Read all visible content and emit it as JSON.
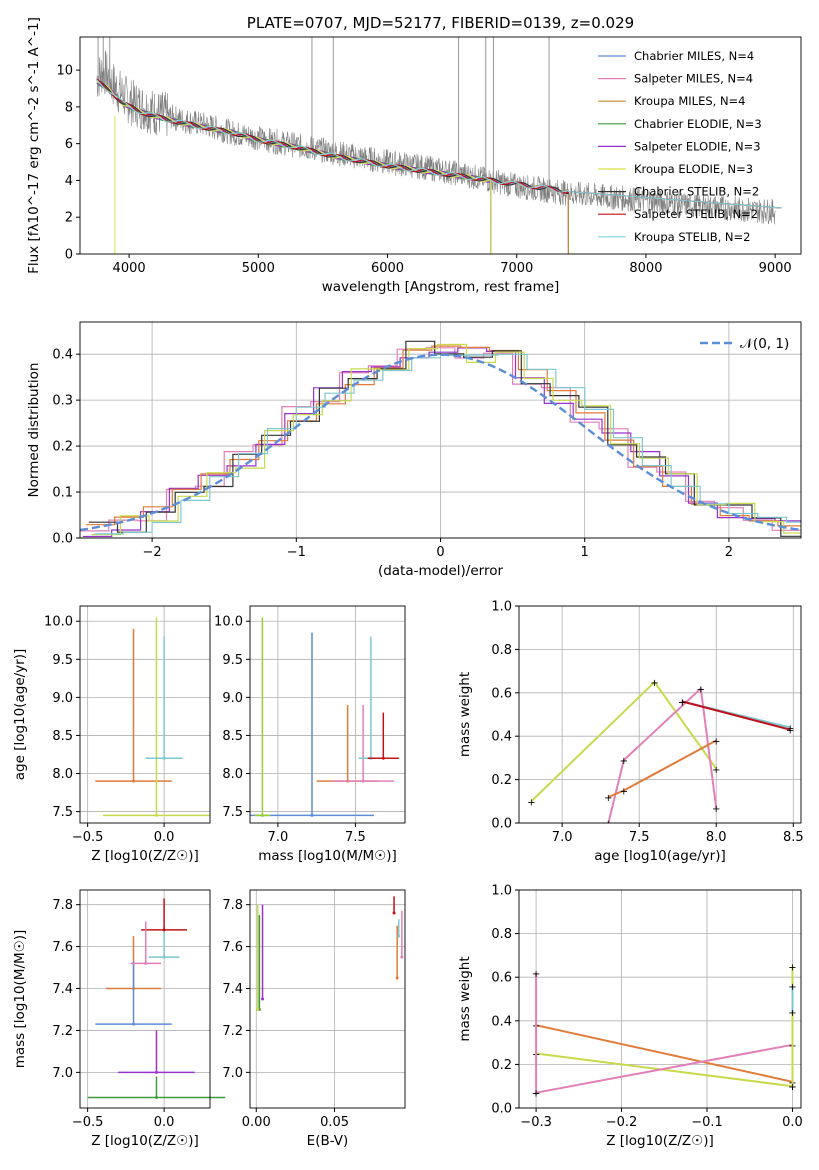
{
  "chart_data": [
    {
      "type": "line",
      "title": "PLATE=0707, MJD=52177, FIBERID=0139, z=0.029",
      "xlabel": "wavelength [Angstrom, rest frame]",
      "ylabel": "Flux [fλ10^-17 erg cm^-2 s^-1 A^-1]",
      "xlim": [
        3620,
        9200
      ],
      "ylim": [
        0,
        11.8
      ],
      "xticks": [
        "4000",
        "5000",
        "6000",
        "7000",
        "8000",
        "9000"
      ],
      "yticks": [
        "0",
        "2",
        "4",
        "6",
        "8",
        "10"
      ],
      "legend_position": "upper-right",
      "observed_spectrum": {
        "color": "#808080",
        "x": [
          3750,
          3800,
          3900,
          4000,
          4100,
          4200,
          4400,
          4600,
          4800,
          5000,
          5300,
          5600,
          6000,
          6300,
          6600,
          6800,
          7000,
          7200,
          7400,
          7700,
          8000,
          8400,
          8800,
          9000
        ],
        "y": [
          9.5,
          10.0,
          9.0,
          8.3,
          8.0,
          7.7,
          7.3,
          7.0,
          6.6,
          6.3,
          5.9,
          5.5,
          5.0,
          4.7,
          4.3,
          4.0,
          3.7,
          3.5,
          3.3,
          3.1,
          2.9,
          2.6,
          2.4,
          2.3
        ]
      },
      "series": [
        {
          "name": "Chabrier MILES, N_SSP=4",
          "color": "#5b8ed8"
        },
        {
          "name": "Salpeter MILES, N_SSP=4",
          "color": "#e37fb8"
        },
        {
          "name": "Kroupa MILES, N_SSP=4",
          "color": "#c18a2c"
        },
        {
          "name": "Chabrier ELODIE, N_SSP=3",
          "color": "#3f9b3f"
        },
        {
          "name": "Salpeter ELODIE, N_SSP=3",
          "color": "#9932cc"
        },
        {
          "name": "Kroupa ELODIE, N_SSP=3",
          "color": "#d9e14a"
        },
        {
          "name": "Chabrier STELIB, N_SSP=2",
          "color": "#333333"
        },
        {
          "name": "Salpeter STELIB, N_SSP=2",
          "color": "#c0101a"
        },
        {
          "name": "Kroupa STELIB, N_SSP=2",
          "color": "#7fd3dc"
        }
      ],
      "model_continuum": {
        "x": [
          3750,
          3850,
          3950,
          4100,
          4300,
          4500,
          4800,
          5000,
          5300,
          5600,
          6000,
          6300,
          6600,
          6900,
          7200,
          7400
        ],
        "y": [
          9.4,
          8.9,
          8.2,
          7.7,
          7.3,
          7.0,
          6.6,
          6.2,
          5.8,
          5.3,
          4.8,
          4.5,
          4.2,
          3.9,
          3.6,
          3.4
        ]
      },
      "model_cutoffs": {
        "MILES": 7400,
        "ELODIE": 6800,
        "STELIB": 9050
      }
    },
    {
      "type": "bar",
      "subtype": "step-histogram",
      "xlabel": "(data-model)/error",
      "ylabel": "Normed distribution",
      "xlim": [
        -2.5,
        2.5
      ],
      "ylim": [
        0,
        0.47
      ],
      "xticks": [
        "−2",
        "−1",
        "0",
        "1",
        "2"
      ],
      "yticks": [
        "0.0",
        "0.1",
        "0.2",
        "0.3",
        "0.4"
      ],
      "legend_position": "upper-right",
      "reference": {
        "name": "𝒩(0, 1)",
        "color": "#5b8ed8",
        "style": "dashed"
      },
      "bin_edges": [
        -2.5,
        -2.3,
        -2.1,
        -1.9,
        -1.7,
        -1.5,
        -1.3,
        -1.1,
        -0.9,
        -0.7,
        -0.5,
        -0.3,
        -0.1,
        0.1,
        0.3,
        0.5,
        0.7,
        0.9,
        1.1,
        1.3,
        1.5,
        1.7,
        1.9,
        2.1,
        2.3,
        2.5
      ],
      "values": [
        0.02,
        0.03,
        0.05,
        0.09,
        0.13,
        0.17,
        0.22,
        0.27,
        0.31,
        0.35,
        0.38,
        0.41,
        0.41,
        0.4,
        0.39,
        0.35,
        0.31,
        0.27,
        0.22,
        0.17,
        0.13,
        0.09,
        0.06,
        0.04,
        0.02
      ]
    },
    {
      "type": "scatter",
      "subtype": "error-bars",
      "xlabel": "Z [log10(Z/Z☉)]",
      "ylabel": "age  [log10(age/yr)]",
      "xlim": [
        -0.55,
        0.3
      ],
      "ylim": [
        7.35,
        10.2
      ],
      "xticks": [
        "−0.5",
        "0.0"
      ],
      "yticks": [
        "7.5",
        "8.0",
        "8.5",
        "9.0",
        "9.5",
        "10.0"
      ],
      "points": [
        {
          "x": -0.2,
          "y": 7.9,
          "xerr": 0.25,
          "yerr": 2.0,
          "color": "#e07b39"
        },
        {
          "x": -0.05,
          "y": 7.45,
          "xerr": 0.35,
          "yerr": 2.6,
          "color": "#c9d94c"
        },
        {
          "x": 0.0,
          "y": 8.2,
          "xerr": 0.12,
          "yerr": 1.6,
          "color": "#7fc7d0"
        }
      ]
    },
    {
      "type": "scatter",
      "subtype": "error-bars",
      "xlabel": "mass [log10(M/M☉)]",
      "ylabel": "",
      "xlim": [
        6.82,
        7.82
      ],
      "ylim": [
        7.35,
        10.2
      ],
      "xticks": [
        "7.0",
        "7.5"
      ],
      "yticks": [
        "7.5",
        "8.0",
        "8.5",
        "9.0",
        "9.5",
        "10.0"
      ],
      "points": [
        {
          "x": 7.22,
          "y": 7.45,
          "xerr": 0.4,
          "yerr": 2.4,
          "color": "#5b8ed8"
        },
        {
          "x": 7.45,
          "y": 7.9,
          "xerr": 0.2,
          "yerr": 1.0,
          "color": "#e07b39"
        },
        {
          "x": 7.55,
          "y": 7.9,
          "xerr": 0.2,
          "yerr": 1.0,
          "color": "#e37fb8"
        },
        {
          "x": 7.6,
          "y": 8.2,
          "xerr": 0.08,
          "yerr": 1.6,
          "color": "#7fc7d0"
        },
        {
          "x": 7.68,
          "y": 8.2,
          "xerr": 0.1,
          "yerr": 0.6,
          "color": "#c0101a"
        },
        {
          "x": 6.9,
          "y": 7.45,
          "xerr": 0.05,
          "yerr": 2.6,
          "color": "#9acd32"
        }
      ]
    },
    {
      "type": "line",
      "xlabel": "age  [log10(age/yr)]",
      "ylabel": "mass weight",
      "xlim": [
        6.72,
        8.55
      ],
      "ylim": [
        0,
        1.0
      ],
      "xticks": [
        "7.0",
        "7.5",
        "8.0",
        "8.5"
      ],
      "yticks": [
        "0.0",
        "0.2",
        "0.4",
        "0.6",
        "0.8",
        "1.0"
      ],
      "series": [
        {
          "color": "#c9d94c",
          "x": [
            6.8,
            7.6,
            8.0
          ],
          "y": [
            0.1,
            0.65,
            0.25
          ]
        },
        {
          "color": "#e37fb8",
          "x": [
            7.3,
            7.4,
            7.9,
            8.0
          ],
          "y": [
            0.0,
            0.29,
            0.62,
            0.07
          ]
        },
        {
          "color": "#e07b39",
          "x": [
            7.3,
            7.4,
            8.0
          ],
          "y": [
            0.12,
            0.15,
            0.38
          ]
        },
        {
          "color": "#7fc7d0",
          "x": [
            7.78,
            8.48
          ],
          "y": [
            0.56,
            0.44
          ]
        },
        {
          "color": "#c0101a",
          "x": [
            7.78,
            8.48
          ],
          "y": [
            0.56,
            0.43
          ]
        }
      ]
    },
    {
      "type": "scatter",
      "subtype": "error-bars",
      "xlabel": "Z [log10(Z/Z☉)]",
      "ylabel": "mass [log10(M/M☉)]",
      "xlim": [
        -0.55,
        0.3
      ],
      "ylim": [
        6.83,
        7.87
      ],
      "xticks": [
        "−0.5",
        "0.0"
      ],
      "yticks": [
        "7.0",
        "7.2",
        "7.4",
        "7.6",
        "7.8"
      ],
      "points": [
        {
          "x": -0.2,
          "y": 7.4,
          "xerr": 0.18,
          "yerr": 0.25,
          "color": "#e07b39"
        },
        {
          "x": -0.2,
          "y": 7.23,
          "xerr": 0.25,
          "yerr": 0.3,
          "color": "#5b8ed8"
        },
        {
          "x": -0.05,
          "y": 7.0,
          "xerr": 0.25,
          "yerr": 0.2,
          "color": "#9932cc"
        },
        {
          "x": 0.0,
          "y": 7.55,
          "xerr": 0.1,
          "yerr": 0.15,
          "color": "#7fc7d0"
        },
        {
          "x": -0.05,
          "y": 6.88,
          "xerr": 0.45,
          "yerr": 0.1,
          "color": "#3f9b3f"
        },
        {
          "x": 0.0,
          "y": 7.68,
          "xerr": 0.15,
          "yerr": 0.15,
          "color": "#c0101a"
        },
        {
          "x": -0.12,
          "y": 7.52,
          "xerr": 0.1,
          "yerr": 0.2,
          "color": "#e37fb8"
        }
      ]
    },
    {
      "type": "scatter",
      "subtype": "error-bars",
      "xlabel": "E(B-V)",
      "ylabel": "",
      "xlim": [
        -0.004,
        0.095
      ],
      "ylim": [
        6.83,
        7.87
      ],
      "xticks": [
        "0.00",
        "0.05"
      ],
      "yticks": [
        "7.0",
        "7.2",
        "7.4",
        "7.6",
        "7.8"
      ],
      "points": [
        {
          "x": 0.002,
          "y": 7.3,
          "yerr": 0.45,
          "color": "#3f9b3f"
        },
        {
          "x": 0.004,
          "y": 7.35,
          "yerr": 0.45,
          "color": "#9932cc"
        },
        {
          "x": 0.088,
          "y": 7.76,
          "yerr": 0.08,
          "color": "#c0101a"
        },
        {
          "x": 0.09,
          "y": 7.45,
          "yerr": 0.25,
          "color": "#e07b39"
        },
        {
          "x": 0.091,
          "y": 7.65,
          "yerr": 0.08,
          "color": "#7fc7d0"
        },
        {
          "x": 0.093,
          "y": 7.55,
          "yerr": 0.22,
          "color": "#e37fb8"
        },
        {
          "x": 0.001,
          "y": 7.3,
          "yerr": 0.5,
          "color": "#c9d94c"
        }
      ]
    },
    {
      "type": "line",
      "xlabel": "Z [log10(Z/Z☉)]",
      "ylabel": "mass weight",
      "xlim": [
        -0.32,
        0.01
      ],
      "ylim": [
        0,
        1.0
      ],
      "xticks": [
        "−0.3",
        "−0.2",
        "−0.1",
        "0.0"
      ],
      "yticks": [
        "0.0",
        "0.2",
        "0.4",
        "0.6",
        "0.8",
        "1.0"
      ],
      "series": [
        {
          "color": "#e07b39",
          "x": [
            -0.3,
            0.0
          ],
          "y": [
            0.38,
            0.12
          ]
        },
        {
          "color": "#c9d94c",
          "x": [
            -0.3,
            0.0
          ],
          "y": [
            0.25,
            0.1
          ]
        },
        {
          "color": "#e37fb8",
          "x": [
            -0.3,
            0.0
          ],
          "y": [
            0.07,
            0.29
          ]
        },
        {
          "color": "#e37fb8",
          "x": [
            -0.3,
            -0.3
          ],
          "y": [
            0.07,
            0.62
          ]
        },
        {
          "color": "#c9d94c",
          "x": [
            0.0,
            0.0
          ],
          "y": [
            0.1,
            0.65
          ]
        },
        {
          "color": "#7fc7d0",
          "x": [
            0.0,
            0.0
          ],
          "y": [
            0.44,
            0.56
          ]
        }
      ]
    }
  ]
}
